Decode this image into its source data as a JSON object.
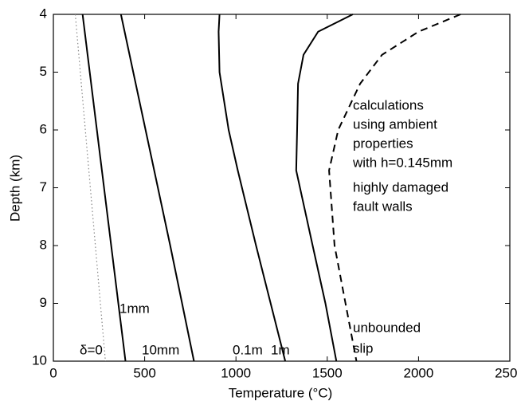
{
  "chart_data": {
    "type": "line",
    "x_label": "Temperature (°C)",
    "y_label": "Depth (km)",
    "xlim": [
      0,
      2500
    ],
    "xticks": [
      0,
      500,
      1000,
      1500,
      2000,
      2500
    ],
    "ylim": [
      4,
      10
    ],
    "yticks": [
      4,
      5,
      6,
      7,
      8,
      9,
      10
    ],
    "y_inverted": true,
    "series": [
      {
        "label": [
          "δ=0"
        ],
        "color": "#888888",
        "style": "dotted",
        "x": [
          120,
          175,
          230,
          285
        ],
        "y": [
          4,
          6,
          8,
          10
        ]
      },
      {
        "label": [
          "1mm"
        ],
        "color": "#000000",
        "style": "solid",
        "x": [
          160,
          395
        ],
        "y": [
          4,
          10
        ]
      },
      {
        "label": [
          "10mm"
        ],
        "color": "#000000",
        "style": "solid",
        "x": [
          370,
          505,
          640,
          770
        ],
        "y": [
          4,
          6,
          8,
          10
        ]
      },
      {
        "label": [
          "0.1m"
        ],
        "color": "#000000",
        "style": "solid",
        "x": [
          910,
          905,
          910,
          960,
          1010,
          1110,
          1190,
          1270
        ],
        "y": [
          4,
          4.3,
          5,
          6,
          6.7,
          8,
          9,
          10
        ]
      },
      {
        "label": [
          "1m"
        ],
        "color": "#000000",
        "style": "solid",
        "x": [
          1640,
          1450,
          1370,
          1340,
          1335,
          1330,
          1420,
          1490,
          1550
        ],
        "y": [
          4,
          4.3,
          4.7,
          5.2,
          6,
          6.7,
          8,
          9,
          10
        ]
      },
      {
        "label": [
          "unbounded",
          "slip"
        ],
        "color": "#000000",
        "style": "dashed",
        "x": [
          2230,
          2000,
          1800,
          1680,
          1560,
          1510,
          1540,
          1600,
          1660
        ],
        "y": [
          4,
          4.3,
          4.7,
          5.2,
          6,
          6.7,
          8,
          9,
          10
        ]
      }
    ],
    "annotations": [
      [
        "calculations",
        "using ambient",
        "properties",
        "with h=0.145mm"
      ],
      [
        "highly damaged",
        "fault walls"
      ]
    ]
  }
}
